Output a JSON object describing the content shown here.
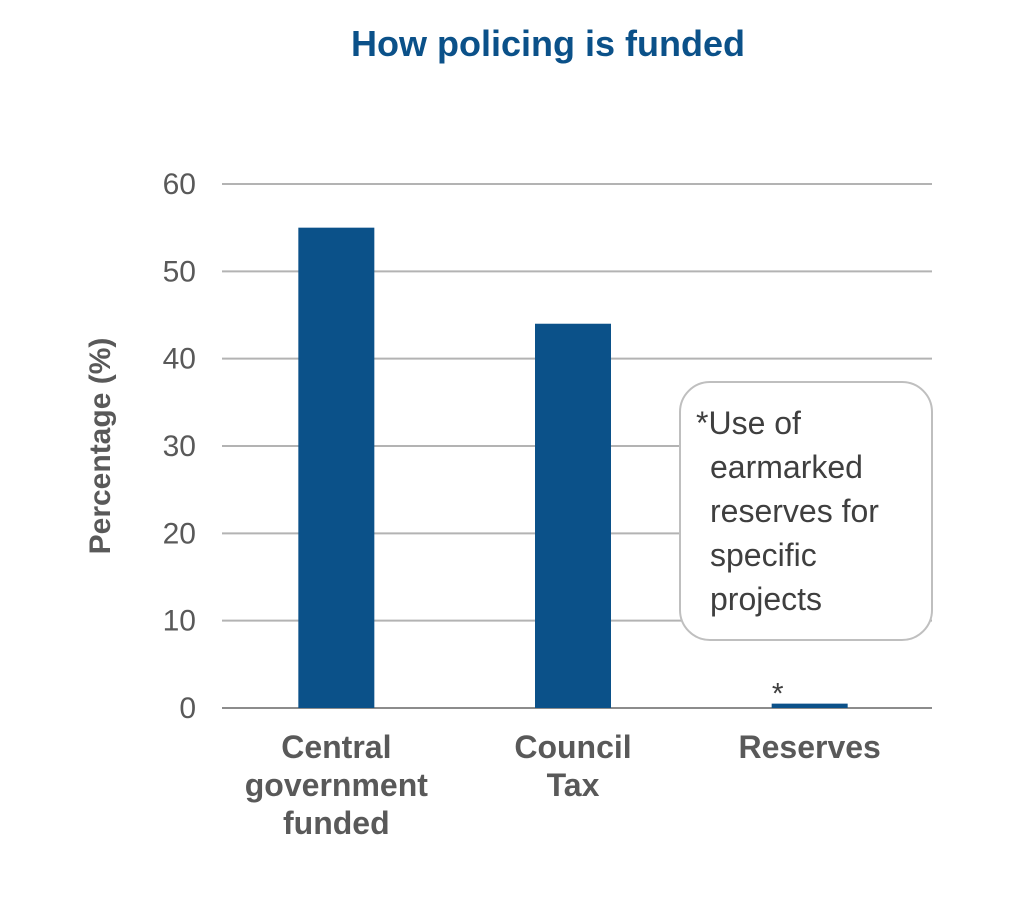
{
  "chart_data": {
    "type": "bar",
    "title": "How policing is funded",
    "ylabel": "Percentage (%)",
    "xlabel": "",
    "categories": [
      [
        "Central",
        "government",
        "funded"
      ],
      [
        "Council",
        "Tax"
      ],
      [
        "Reserves"
      ]
    ],
    "values": [
      55,
      44,
      0.5
    ],
    "ylim": [
      0,
      60
    ],
    "yticks": [
      0,
      10,
      20,
      30,
      40,
      50,
      60
    ],
    "grid": true,
    "legend": "none",
    "bar_color": "#0b5189",
    "title_color": "#0b5189",
    "annotations": {
      "bar_marker": "*",
      "note_lines": [
        "*Use of",
        "earmarked",
        "reserves for",
        "specific",
        "projects"
      ]
    }
  }
}
